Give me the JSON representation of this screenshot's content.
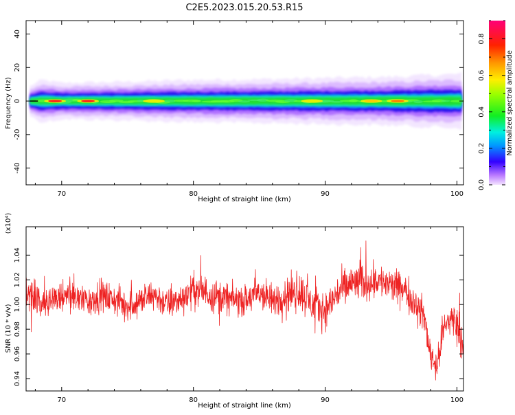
{
  "title": "C2E5.2023.015.20.53.R15",
  "chart_data": [
    {
      "type": "heatmap",
      "xlabel": "Height of straight line (km)",
      "ylabel": "Frequency (Hz)",
      "xlim": [
        67.3,
        100.5
      ],
      "ylim": [
        -50,
        48
      ],
      "x_ticks": [
        70,
        80,
        90,
        100
      ],
      "y_ticks": [
        -40,
        -20,
        0,
        20,
        40
      ],
      "colorbar": {
        "label": "Normalized spectral amplitude",
        "range": [
          0,
          0.9
        ],
        "ticks": [
          0.0,
          0.2,
          0.4,
          0.6,
          0.8
        ]
      },
      "band": {
        "center_hz": 0,
        "halfwidth_profile_x": [
          67.6,
          68.5,
          70,
          75,
          80,
          85,
          90,
          95,
          100.5
        ],
        "halfwidth_profile_hz": [
          2.5,
          3.5,
          3.0,
          3.2,
          3.5,
          3.6,
          3.8,
          4.0,
          4.5
        ],
        "hotspots": [
          {
            "x": 69.5,
            "amplitude": 0.85
          },
          {
            "x": 72,
            "amplitude": 0.8
          },
          {
            "x": 77,
            "amplitude": 0.55
          },
          {
            "x": 89,
            "amplitude": 0.55
          },
          {
            "x": 93.5,
            "amplitude": 0.65
          },
          {
            "x": 95.5,
            "amplitude": 0.75
          }
        ]
      }
    },
    {
      "type": "line",
      "xlabel": "Height of straight line (km)",
      "ylabel": "SNR (10 * v/v)",
      "y_multiplier": "(x10⁴)",
      "xlim": [
        67.3,
        100.5
      ],
      "ylim": [
        0.93,
        1.063
      ],
      "x_ticks": [
        70,
        80,
        90,
        100
      ],
      "y_ticks": [
        0.94,
        0.96,
        0.98,
        1.0,
        1.02,
        1.04
      ],
      "series": [
        {
          "color": "#ee2222",
          "x": [
            67.3,
            68,
            69,
            70,
            71,
            72,
            73,
            74,
            75,
            76,
            77,
            78,
            79,
            80,
            81,
            82,
            83,
            84,
            85,
            86,
            87,
            88,
            89,
            90,
            91,
            92,
            93,
            94,
            95,
            96,
            97,
            97.5,
            98,
            98.5,
            99,
            99.5,
            100,
            100.5
          ],
          "y_mean": [
            1.012,
            1.005,
            1.002,
            1.006,
            1.008,
            1.003,
            1.007,
            1.004,
            0.999,
            1.003,
            1.008,
            1.0,
            1.004,
            1.012,
            1.01,
            1.006,
            1.004,
            1.003,
            1.01,
            1.002,
            1.008,
            1.012,
            1.0,
            0.995,
            1.01,
            1.017,
            1.018,
            1.02,
            1.015,
            1.012,
            1.0,
            0.99,
            0.96,
            0.95,
            0.98,
            0.99,
            0.985,
            0.97
          ],
          "y_spread": [
            0.022,
            0.018,
            0.018,
            0.018,
            0.018,
            0.018,
            0.018,
            0.018,
            0.018,
            0.018,
            0.018,
            0.018,
            0.018,
            0.02,
            0.02,
            0.02,
            0.018,
            0.018,
            0.022,
            0.02,
            0.02,
            0.024,
            0.022,
            0.022,
            0.022,
            0.024,
            0.022,
            0.02,
            0.02,
            0.02,
            0.018,
            0.02,
            0.02,
            0.018,
            0.02,
            0.02,
            0.02,
            0.025
          ]
        }
      ]
    }
  ]
}
